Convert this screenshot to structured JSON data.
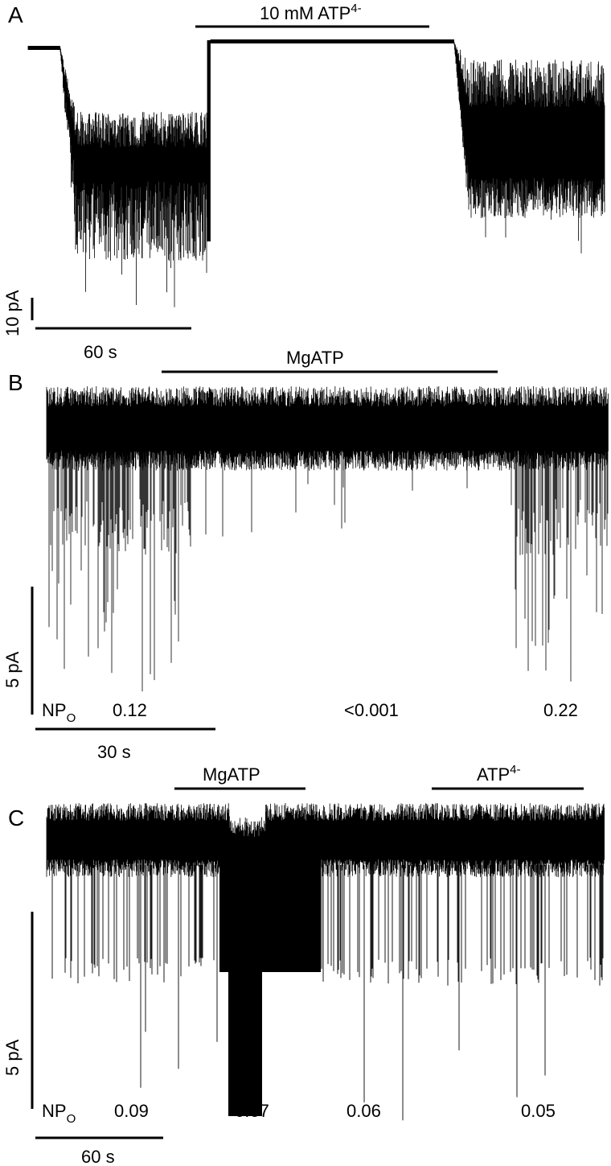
{
  "panels": {
    "a": {
      "letter": "A",
      "treatment_prefix": "10 mM ATP",
      "treatment_superscript": "4-",
      "scale_current": "10 pA",
      "scale_time": "60 s"
    },
    "b": {
      "letter": "B",
      "treatment": "MgATP",
      "scale_current": "5 pA",
      "scale_time": "30 s",
      "npo_label": "NP",
      "npo_subscript": "O",
      "npo_values": [
        "0.12",
        "<0.001",
        "0.22"
      ]
    },
    "c": {
      "letter": "C",
      "treatment_1": "MgATP",
      "treatment_2_prefix": "ATP",
      "treatment_2_superscript": "4-",
      "scale_current": "5 pA",
      "scale_time": "60 s",
      "npo_label": "NP",
      "npo_subscript": "O",
      "npo_values": [
        "0.09",
        "0.67",
        "0.06",
        "0.05"
      ]
    }
  },
  "colors": {
    "trace": "#000000",
    "background": "#ffffff"
  }
}
